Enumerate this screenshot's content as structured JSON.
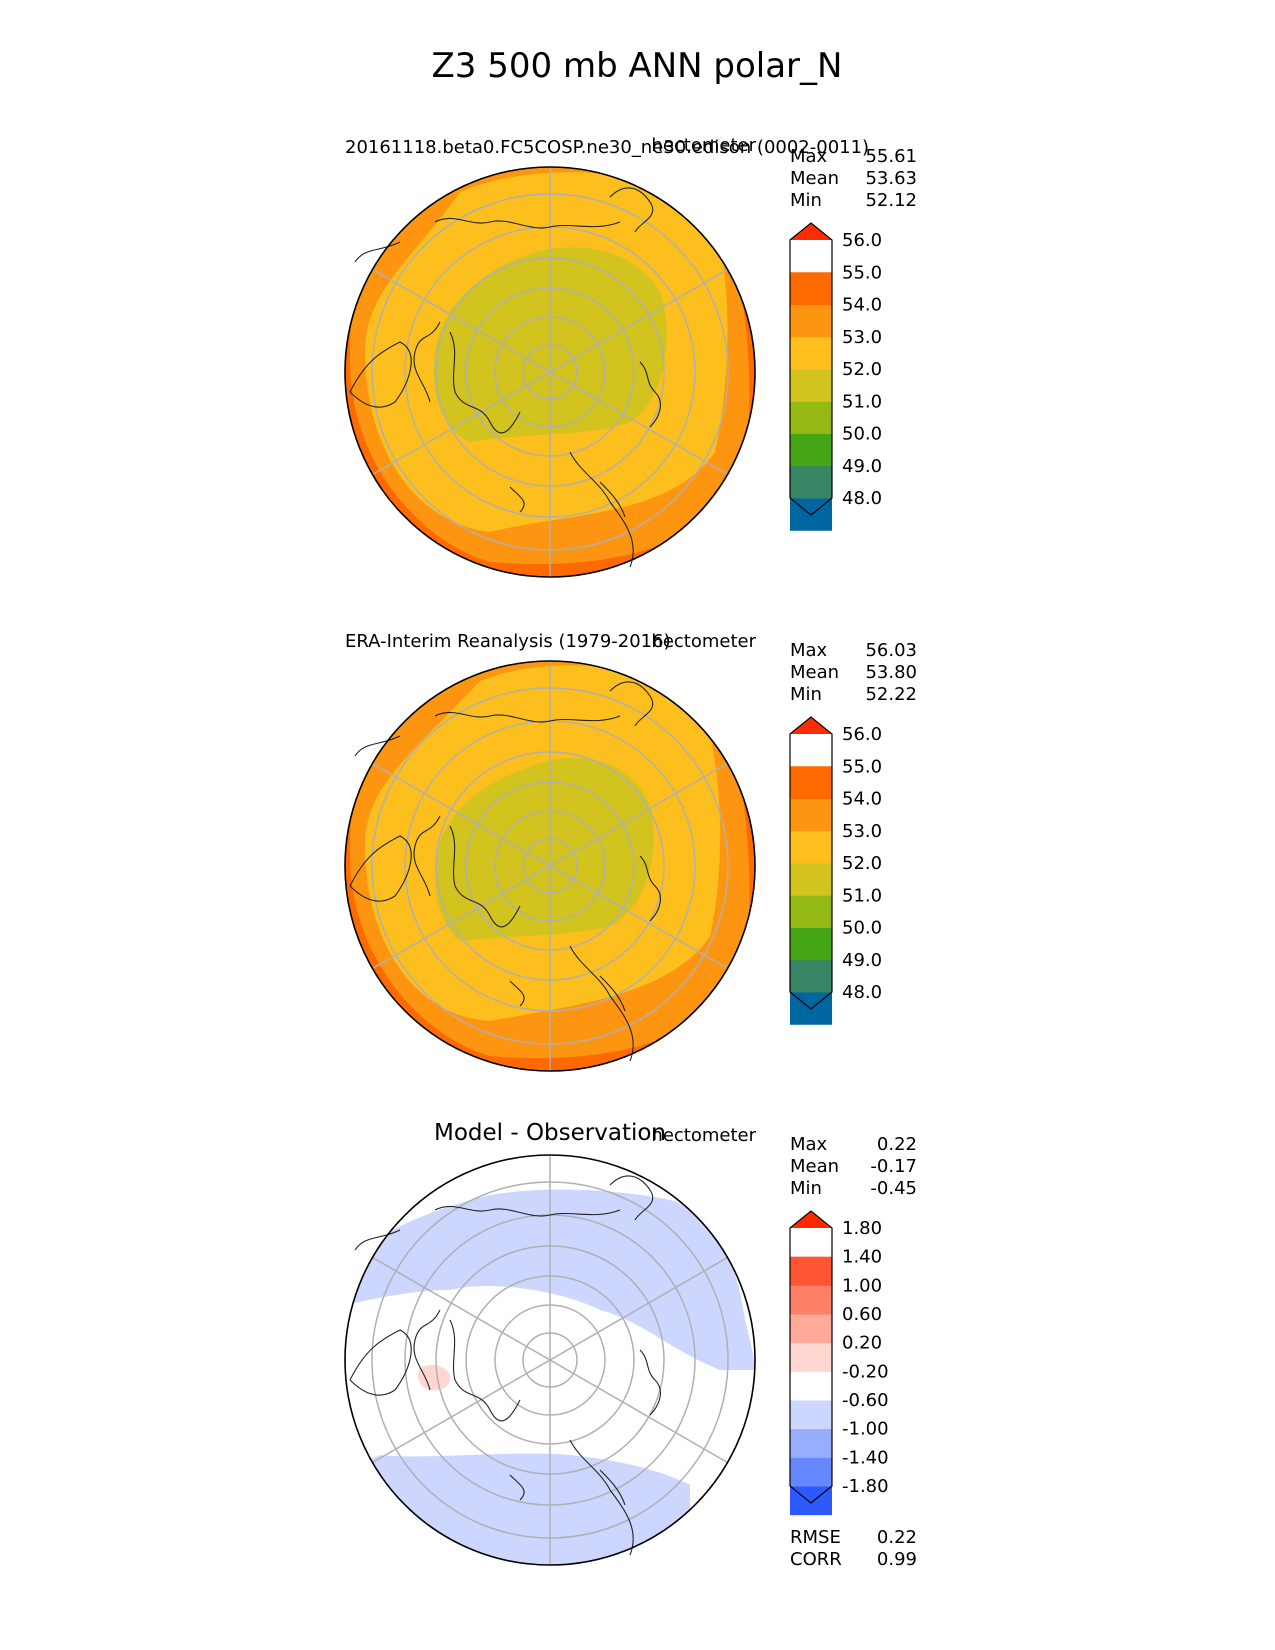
{
  "figure": {
    "title": "Z3 500 mb ANN polar_N"
  },
  "chart_data": [
    {
      "type": "heatmap",
      "projection": "north-polar-stereographic",
      "title": "20161118.beta0.FC5COSP.ne30_ne30.edison (0002-0011)",
      "units": "hectometer",
      "stats": [
        {
          "label": "Max",
          "value": "55.61"
        },
        {
          "label": "Mean",
          "value": "53.63"
        },
        {
          "label": "Min",
          "value": "52.12"
        }
      ],
      "colorbar": {
        "levels": [
          "48.0",
          "49.0",
          "50.0",
          "51.0",
          "52.0",
          "53.0",
          "54.0",
          "55.0",
          "56.0"
        ],
        "colors": [
          "#0a3cff",
          "#0066a1",
          "#378564",
          "#46a514",
          "#94b814",
          "#d2c31e",
          "#fdbf1e",
          "#fe9511",
          "#fe6a00",
          "#fe2d00"
        ],
        "extend": "both"
      },
      "field": {
        "colors": [
          "#fe6a00",
          "#fe9511",
          "#fdbf1e",
          "#d2c31e"
        ],
        "base_color": "#fe6a00"
      }
    },
    {
      "type": "heatmap",
      "projection": "north-polar-stereographic",
      "title": "ERA-Interim Reanalysis (1979-2016)",
      "units": "hectometer",
      "stats": [
        {
          "label": "Max",
          "value": "56.03"
        },
        {
          "label": "Mean",
          "value": "53.80"
        },
        {
          "label": "Min",
          "value": "52.22"
        }
      ],
      "colorbar": {
        "levels": [
          "48.0",
          "49.0",
          "50.0",
          "51.0",
          "52.0",
          "53.0",
          "54.0",
          "55.0",
          "56.0"
        ],
        "colors": [
          "#0a3cff",
          "#0066a1",
          "#378564",
          "#46a514",
          "#94b814",
          "#d2c31e",
          "#fdbf1e",
          "#fe9511",
          "#fe6a00",
          "#fe2d00"
        ],
        "extend": "both"
      },
      "field": {
        "colors": [
          "#fe6a00",
          "#fe9511",
          "#fdbf1e",
          "#d2c31e"
        ],
        "base_color": "#fe6a00"
      }
    },
    {
      "type": "heatmap",
      "projection": "north-polar-stereographic",
      "title": "Model - Observation",
      "units": "hectometer",
      "stats": [
        {
          "label": "Max",
          "value": "0.22"
        },
        {
          "label": "Mean",
          "value": "-0.17"
        },
        {
          "label": "Min",
          "value": "-0.45"
        }
      ],
      "colorbar": {
        "levels": [
          "-1.80",
          "-1.40",
          "-1.00",
          "-0.60",
          "-0.20",
          "0.20",
          "0.60",
          "1.00",
          "1.40",
          "1.80"
        ],
        "colors": [
          "#0a3cff",
          "#2d5aff",
          "#6687ff",
          "#99adff",
          "#ccd6ff",
          "#ffffff",
          "#ffd7d0",
          "#ffaa99",
          "#ff8066",
          "#ff5533",
          "#ff2a00"
        ],
        "extend": "both"
      },
      "field": {
        "colors": [
          "#ccd6ff",
          "#ffd7d0"
        ],
        "base_color": "#ffffff"
      },
      "metrics": [
        {
          "label": "RMSE",
          "value": "0.22"
        },
        {
          "label": "CORR",
          "value": "0.99"
        }
      ]
    }
  ]
}
